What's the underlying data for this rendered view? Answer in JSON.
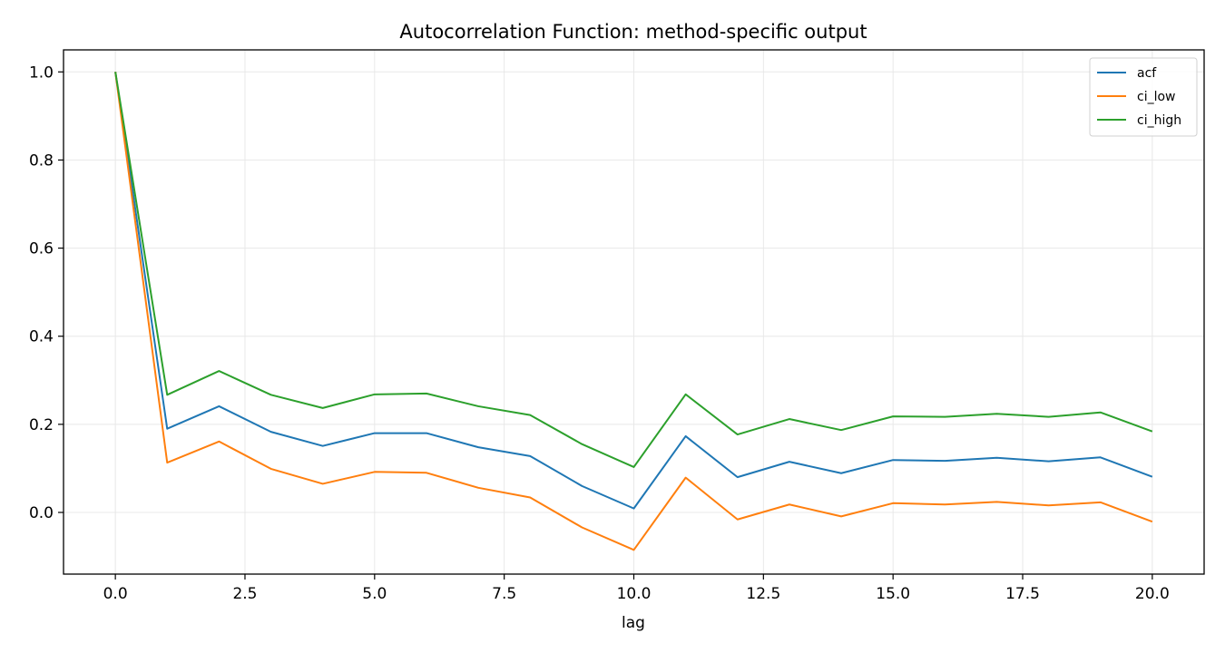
{
  "chart_data": {
    "type": "line",
    "title": "Autocorrelation Function: method-specific output",
    "xlabel": "lag",
    "ylabel": "",
    "xlim": [
      -1,
      21
    ],
    "ylim": [
      -0.14,
      1.05
    ],
    "xticks": [
      0.0,
      2.5,
      5.0,
      7.5,
      10.0,
      12.5,
      15.0,
      17.5,
      20.0
    ],
    "xtick_labels": [
      "0.0",
      "2.5",
      "5.0",
      "7.5",
      "10.0",
      "12.5",
      "15.0",
      "17.5",
      "20.0"
    ],
    "yticks": [
      0.0,
      0.2,
      0.4,
      0.6,
      0.8,
      1.0
    ],
    "ytick_labels": [
      "0.0",
      "0.2",
      "0.4",
      "0.6",
      "0.8",
      "1.0"
    ],
    "grid": true,
    "legend_position": "top-right",
    "x": [
      0,
      1,
      2,
      3,
      4,
      5,
      6,
      7,
      8,
      9,
      10,
      11,
      12,
      13,
      14,
      15,
      16,
      17,
      18,
      19,
      20
    ],
    "series": [
      {
        "name": "acf",
        "color": "#1f77b4",
        "values": [
          1.0,
          0.19,
          0.241,
          0.183,
          0.151,
          0.18,
          0.18,
          0.148,
          0.128,
          0.06,
          0.009,
          0.173,
          0.08,
          0.115,
          0.089,
          0.119,
          0.117,
          0.124,
          0.116,
          0.125,
          0.081
        ]
      },
      {
        "name": "ci_low",
        "color": "#ff7f0e",
        "values": [
          1.0,
          0.113,
          0.161,
          0.099,
          0.065,
          0.092,
          0.09,
          0.056,
          0.034,
          -0.034,
          -0.085,
          0.079,
          -0.016,
          0.018,
          -0.009,
          0.021,
          0.018,
          0.024,
          0.016,
          0.023,
          -0.021
        ]
      },
      {
        "name": "ci_high",
        "color": "#2ca02c",
        "values": [
          1.0,
          0.267,
          0.321,
          0.267,
          0.237,
          0.268,
          0.27,
          0.241,
          0.221,
          0.155,
          0.103,
          0.268,
          0.177,
          0.212,
          0.187,
          0.218,
          0.217,
          0.224,
          0.217,
          0.227,
          0.184
        ]
      }
    ]
  }
}
